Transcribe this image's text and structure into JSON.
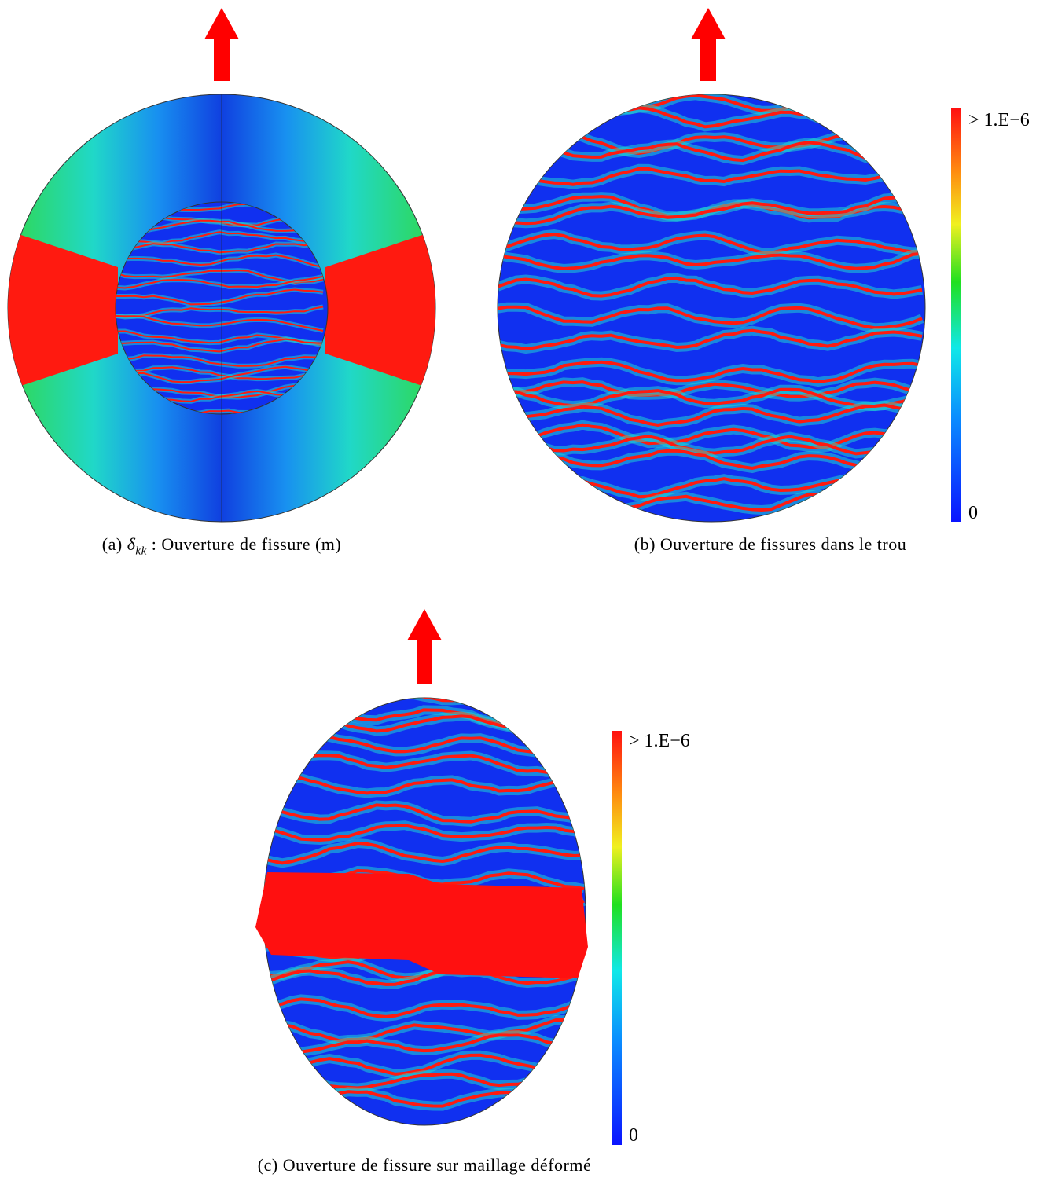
{
  "panels": [
    {
      "label": "(a)",
      "symbol": "δ",
      "subscript": "kk",
      "caption": ": Ouverture de fissure (m)"
    },
    {
      "label": "(b)",
      "caption": "Ouverture de fissures dans le trou"
    },
    {
      "label": "(c)",
      "caption": "Ouverture de fissure sur maillage déformé"
    }
  ],
  "colorbars": [
    {
      "max_label": "> 1.E−6",
      "min_label": "0"
    },
    {
      "max_label": "> 1.E−6",
      "min_label": "0"
    }
  ]
}
